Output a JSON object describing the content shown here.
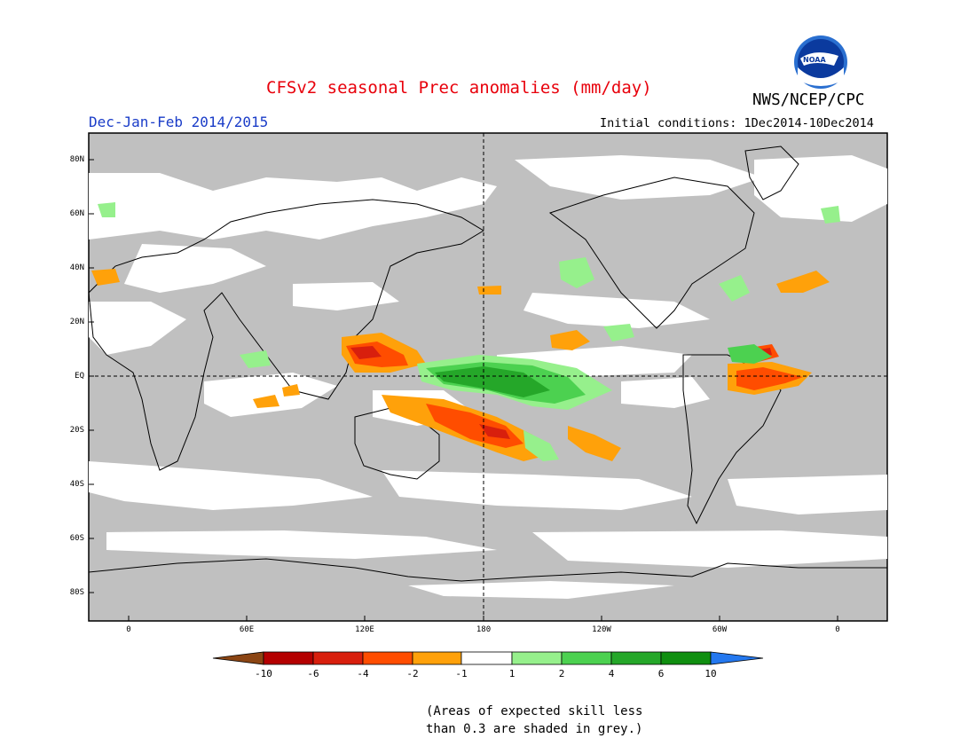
{
  "header": {
    "title": "CFSv2 seasonal Prec anomalies (mm/day)",
    "season": "Dec-Jan-Feb 2014/2015",
    "initial_conditions": "Initial conditions: 1Dec2014-10Dec2014",
    "org": "NWS/NCEP/CPC",
    "logo_text": "NOAA"
  },
  "map": {
    "lat_labels": [
      "80N",
      "60N",
      "40N",
      "20N",
      "EQ",
      "20S",
      "40S",
      "60S",
      "80S"
    ],
    "lon_labels": [
      "0",
      "60E",
      "120E",
      "180",
      "120W",
      "60W",
      "0"
    ],
    "colors": {
      "land_skill_grey": "#c0c0c0",
      "neg_1_2": "#ffa10a",
      "neg_2_4": "#ff4d00",
      "neg_4_6": "#d81f0d",
      "pos_1_2": "#96f08c",
      "pos_2_4": "#4cd150",
      "pos_4_6": "#25a729"
    }
  },
  "colorbar": {
    "labels": [
      "-10",
      "-6",
      "-4",
      "-2",
      "-1",
      "1",
      "2",
      "4",
      "6",
      "10"
    ],
    "colors": [
      "#8b4513",
      "#b40000",
      "#d81f0d",
      "#ff4d00",
      "#ffa10a",
      "#ffffff",
      "#96f08c",
      "#4cd150",
      "#25a729",
      "#108f10",
      "#2478ef"
    ]
  },
  "footnote": {
    "line1": "(Areas of expected skill less",
    "line2": "than 0.3 are shaded in grey.)"
  }
}
